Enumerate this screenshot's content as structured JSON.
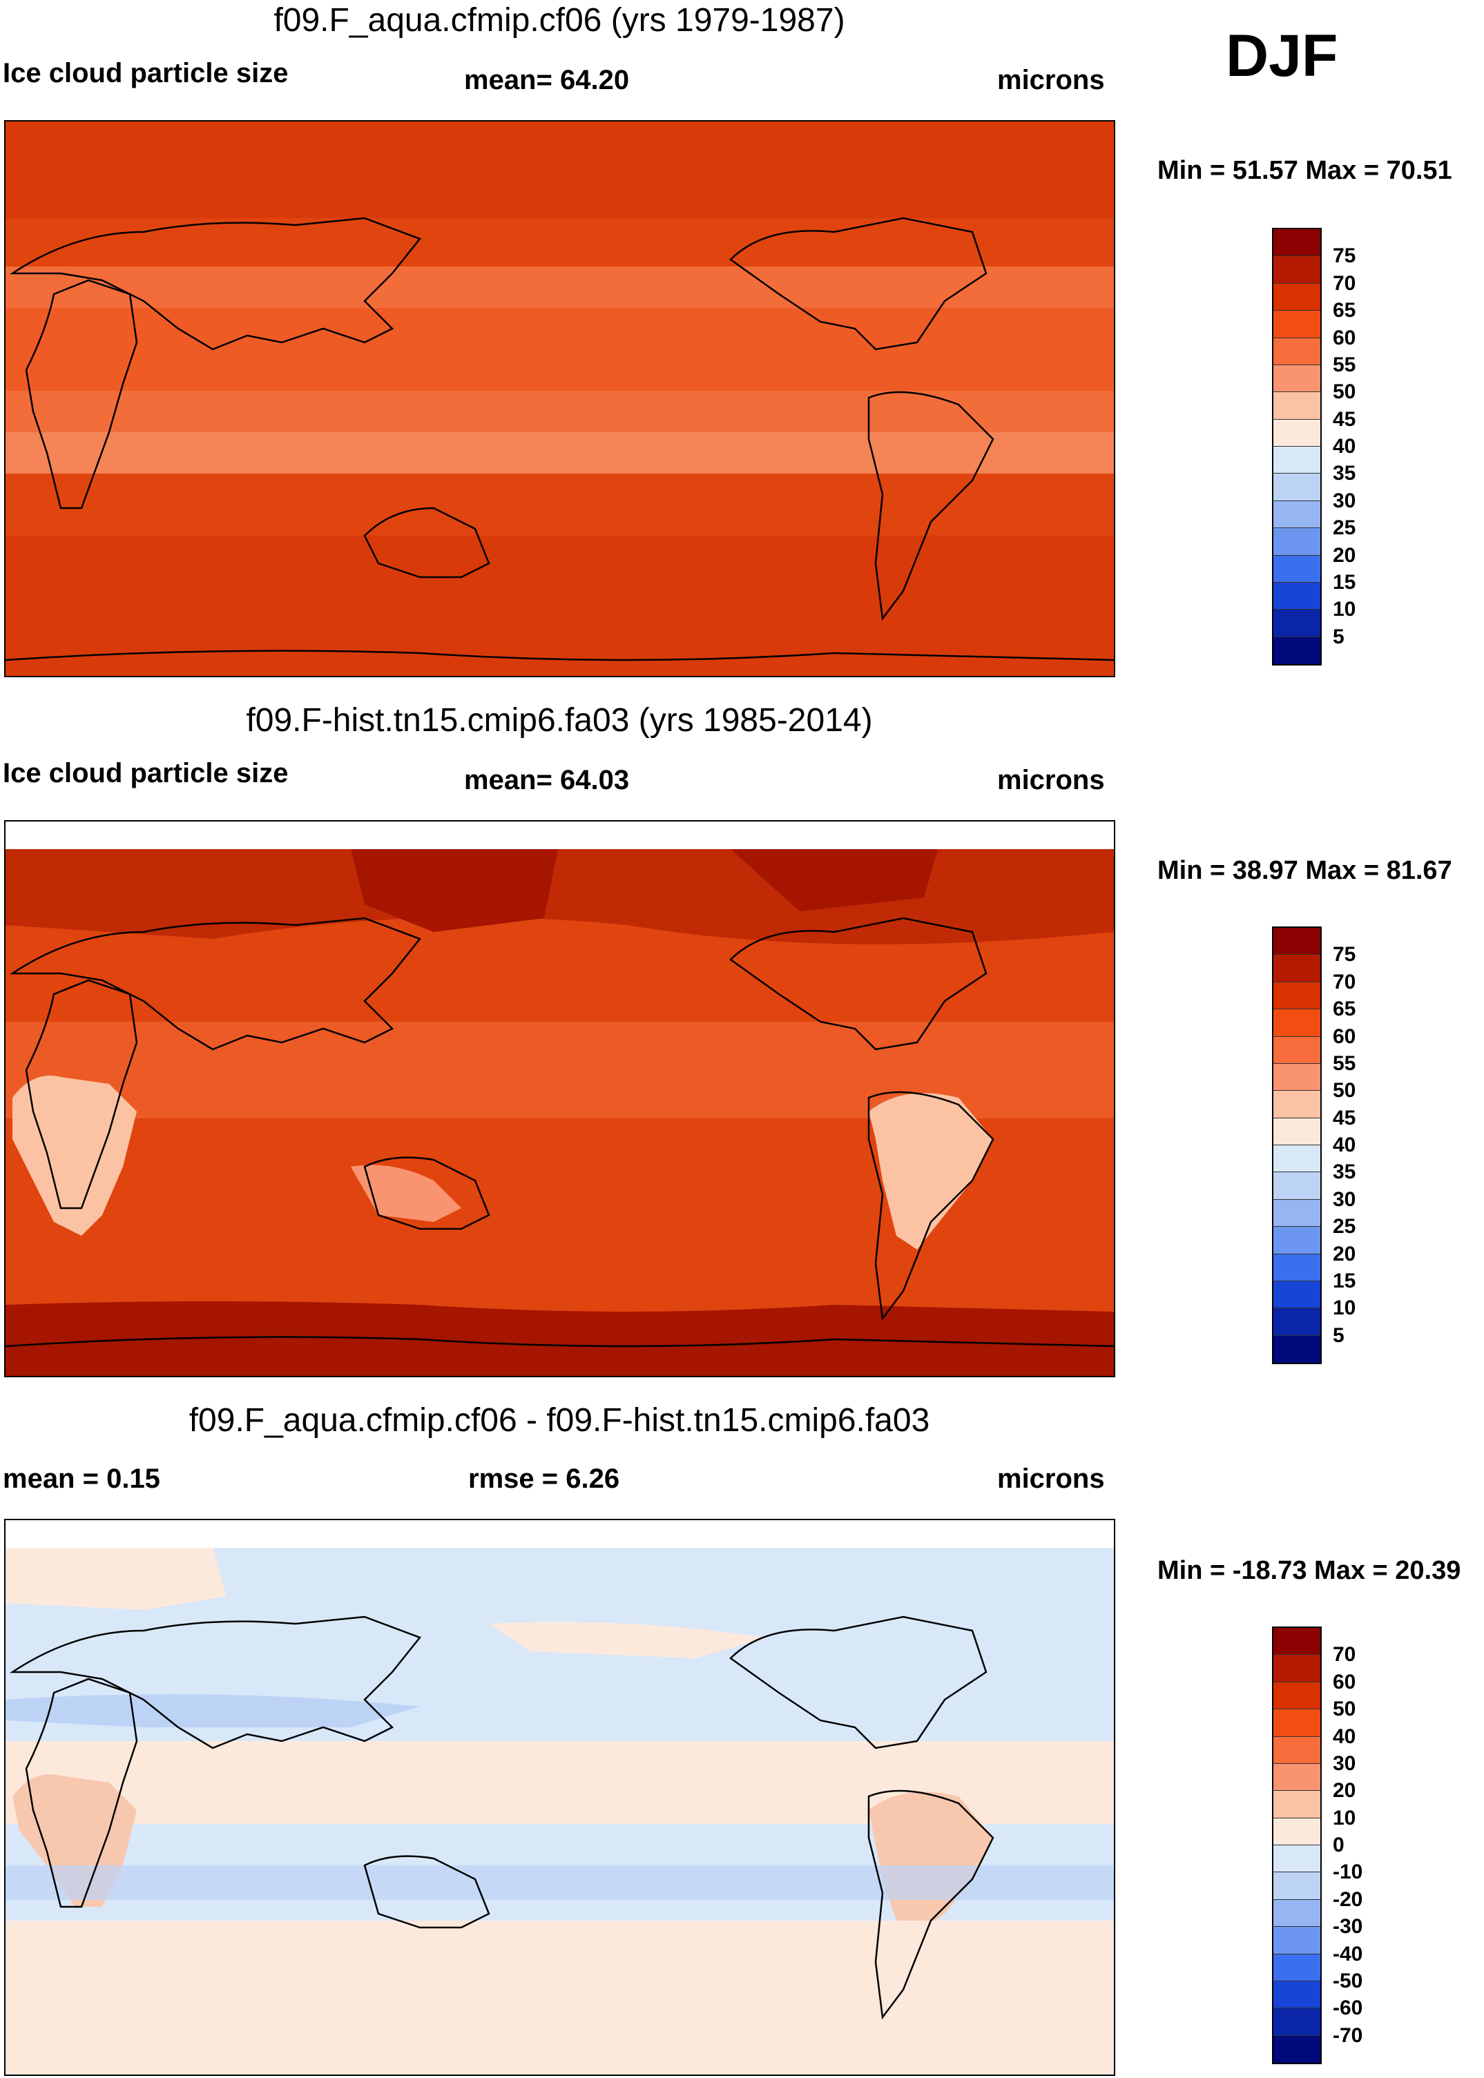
{
  "season": "DJF",
  "panels": [
    {
      "title": "f09.F_aqua.cfmip.cf06 (yrs 1979-1987)",
      "left_label": "Ice cloud particle size",
      "center_label": "mean=  64.20",
      "units": "microns",
      "minmax": "Min =  51.57 Max =  70.51",
      "colorbar_labels": [
        "75",
        "70",
        "65",
        "60",
        "55",
        "50",
        "45",
        "40",
        "35",
        "30",
        "25",
        "20",
        "15",
        "10",
        "5"
      ]
    },
    {
      "title": "f09.F-hist.tn15.cmip6.fa03 (yrs 1985-2014)",
      "left_label": "Ice cloud particle size",
      "center_label": "mean=  64.03",
      "units": "microns",
      "minmax": "Min =  38.97 Max =  81.67",
      "colorbar_labels": [
        "75",
        "70",
        "65",
        "60",
        "55",
        "50",
        "45",
        "40",
        "35",
        "30",
        "25",
        "20",
        "15",
        "10",
        "5"
      ]
    },
    {
      "title": "f09.F_aqua.cfmip.cf06 - f09.F-hist.tn15.cmip6.fa03",
      "left_label": "mean =    0.15",
      "center_label": "rmse =    6.26",
      "units": "microns",
      "minmax": "Min = -18.73 Max =  20.39",
      "colorbar_labels": [
        "70",
        "60",
        "50",
        "40",
        "30",
        "20",
        "10",
        "0",
        "-10",
        "-20",
        "-30",
        "-40",
        "-50",
        "-60",
        "-70"
      ]
    }
  ],
  "colors": {
    "scale": [
      "#8b0000",
      "#b31a00",
      "#d93200",
      "#f24d12",
      "#f76d3c",
      "#f99470",
      "#fbc3a3",
      "#fde9dc",
      "#d9e8f9",
      "#bcd3f6",
      "#96b6f3",
      "#6c96ef",
      "#3a6ff0",
      "#1844d8",
      "#0a25a8",
      "#000a7a"
    ],
    "map_base_1": "#e0440f",
    "map_band_1": "#f26d3a",
    "map_base_2": "#e0440f",
    "map_band_2": "#b31a00",
    "map_land_2": "#fbc3a3",
    "map_base_3": "#d9e8f9",
    "map_band_3": "#fde9dc",
    "map_blue_3": "#bcd3f6",
    "coast": "#000000"
  }
}
